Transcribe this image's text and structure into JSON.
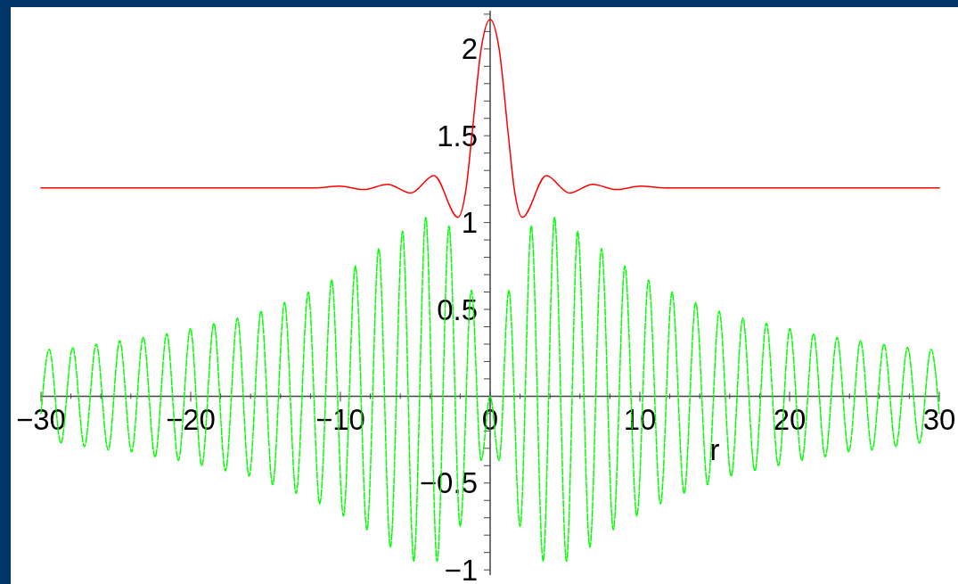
{
  "chart_data": {
    "type": "line",
    "xlabel": "r",
    "xlim": [
      -30,
      30
    ],
    "ylim": [
      -1.03,
      2.22
    ],
    "xticks": [
      -30,
      {
        "value": -28,
        "label": null
      },
      {
        "value": -26,
        "label": null
      },
      {
        "value": -24,
        "label": null
      },
      {
        "value": -22,
        "label": null
      },
      -20,
      {
        "value": -18,
        "label": null
      },
      {
        "value": -16,
        "label": null
      },
      {
        "value": -14,
        "label": null
      },
      {
        "value": -12,
        "label": null
      },
      -10,
      {
        "value": -8,
        "label": null
      },
      {
        "value": -6,
        "label": null
      },
      {
        "value": -4,
        "label": null
      },
      {
        "value": -2,
        "label": null
      },
      0,
      {
        "value": 2,
        "label": null
      },
      {
        "value": 4,
        "label": null
      },
      {
        "value": 6,
        "label": null
      },
      {
        "value": 8,
        "label": null
      },
      10,
      {
        "value": 12,
        "label": null
      },
      {
        "value": 14,
        "label": null
      },
      {
        "value": 16,
        "label": null
      },
      {
        "value": 18,
        "label": null
      },
      20,
      {
        "value": 22,
        "label": null
      },
      {
        "value": 24,
        "label": null
      },
      {
        "value": 26,
        "label": null
      },
      {
        "value": 28,
        "label": null
      },
      30
    ],
    "yticks": [
      -1,
      {
        "value": -0.9,
        "label": null
      },
      {
        "value": -0.8,
        "label": null
      },
      {
        "value": -0.7,
        "label": null
      },
      {
        "value": -0.6,
        "label": null
      },
      -0.5,
      {
        "value": -0.4,
        "label": null
      },
      {
        "value": -0.3,
        "label": null
      },
      {
        "value": -0.2,
        "label": null
      },
      {
        "value": -0.1,
        "label": null
      },
      {
        "value": 0.1,
        "label": null
      },
      {
        "value": 0.2,
        "label": null
      },
      {
        "value": 0.3,
        "label": null
      },
      {
        "value": 0.4,
        "label": null
      },
      0.5,
      {
        "value": 0.6,
        "label": null
      },
      {
        "value": 0.7,
        "label": null
      },
      {
        "value": 0.8,
        "label": null
      },
      {
        "value": 0.9,
        "label": null
      },
      1,
      {
        "value": 1.1,
        "label": null
      },
      {
        "value": 1.2,
        "label": null
      },
      {
        "value": 1.3,
        "label": null
      },
      {
        "value": 1.4,
        "label": null
      },
      1.5,
      {
        "value": 1.6,
        "label": null
      },
      {
        "value": 1.7,
        "label": null
      },
      {
        "value": 1.8,
        "label": null
      },
      {
        "value": 1.9,
        "label": null
      },
      2,
      {
        "value": 2.1,
        "label": null
      },
      {
        "value": 2.2,
        "label": null
      }
    ],
    "series": [
      {
        "color": "#00ff00",
        "line_style": "dashed",
        "x": [
          -30,
          -29.45,
          -28.67,
          -27.88,
          -27.1,
          -26.31,
          -25.51,
          -24.74,
          -23.95,
          -23.17,
          -22.38,
          -21.6,
          -20.82,
          -20.02,
          -19.26,
          -18.45,
          -17.68,
          -16.88,
          -16.1,
          -15.3,
          -14.53,
          -13.73,
          -12.96,
          -12.15,
          -11.38,
          -10.58,
          -9.8,
          -9.0,
          -8.23,
          -7.44,
          -6.66,
          -5.85,
          -5.1,
          -4.3,
          -3.54,
          -2.75,
          -2.0,
          -1.25,
          -0.6,
          0,
          0.6,
          1.25,
          2.0,
          2.75,
          3.54,
          4.3,
          5.1,
          5.85,
          6.66,
          7.44,
          8.23,
          9.0,
          9.8,
          10.58,
          11.38,
          12.15,
          12.96,
          13.73,
          14.53,
          15.3,
          16.1,
          16.88,
          17.68,
          18.45,
          19.26,
          20.02,
          20.82,
          21.6,
          22.38,
          23.17,
          23.95,
          24.74,
          25.51,
          26.31,
          27.1,
          27.88,
          28.67,
          29.45,
          30
        ],
        "values": [
          -0.1,
          0.27,
          -0.27,
          0.28,
          -0.29,
          0.3,
          -0.31,
          0.32,
          -0.32,
          0.34,
          -0.35,
          0.36,
          -0.37,
          0.39,
          -0.4,
          0.42,
          -0.43,
          0.45,
          -0.46,
          0.49,
          -0.51,
          0.54,
          -0.56,
          0.6,
          -0.62,
          0.67,
          -0.69,
          0.75,
          -0.77,
          0.85,
          -0.87,
          0.95,
          -0.95,
          1.03,
          -0.95,
          0.98,
          -0.75,
          0.61,
          -0.37,
          0,
          -0.37,
          0.61,
          -0.75,
          0.98,
          -0.95,
          1.03,
          -0.95,
          0.95,
          -0.87,
          0.85,
          -0.77,
          0.75,
          -0.69,
          0.67,
          -0.62,
          0.6,
          -0.56,
          0.54,
          -0.51,
          0.49,
          -0.46,
          0.45,
          -0.43,
          0.42,
          -0.4,
          0.39,
          -0.37,
          0.36,
          -0.35,
          0.34,
          -0.32,
          0.32,
          -0.31,
          0.3,
          -0.29,
          0.28,
          -0.27,
          0.27,
          -0.1
        ]
      },
      {
        "color": "#ff0000",
        "x": [
          -30,
          -11.7,
          -10.05,
          -8.45,
          -6.85,
          -5.3,
          -3.75,
          -2.15,
          -1.6,
          -1.22,
          -0.6,
          0,
          0.6,
          1.22,
          1.6,
          2.15,
          3.75,
          5.3,
          6.85,
          8.45,
          10.05,
          11.7,
          30
        ],
        "values": [
          1.2,
          1.2,
          1.21,
          1.19,
          1.22,
          1.17,
          1.27,
          1.03,
          1.2,
          1.5,
          2.0,
          2.17,
          2.0,
          1.5,
          1.2,
          1.03,
          1.27,
          1.17,
          1.22,
          1.19,
          1.21,
          1.2,
          1.2
        ]
      }
    ]
  }
}
